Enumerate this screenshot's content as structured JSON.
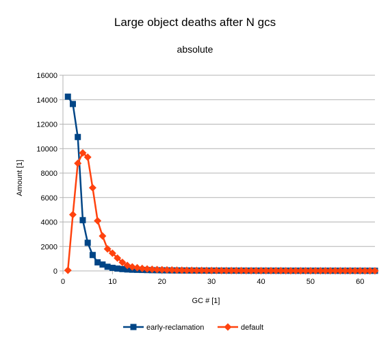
{
  "chart_data": {
    "type": "line",
    "title": "Large object deaths after N gcs",
    "subtitle": "absolute",
    "xlabel": "GC # [1]",
    "ylabel": "Amount [1]",
    "xlim": [
      0,
      63
    ],
    "ylim": [
      0,
      16000
    ],
    "x_ticks": [
      "0",
      "10",
      "20",
      "30",
      "40",
      "50",
      "60"
    ],
    "y_ticks": [
      "0",
      "2000",
      "4000",
      "6000",
      "8000",
      "10000",
      "12000",
      "14000",
      "16000"
    ],
    "grid": "horizontal",
    "legend": "bottom",
    "x": [
      1,
      2,
      3,
      4,
      5,
      6,
      7,
      8,
      9,
      10,
      11,
      12,
      13,
      14,
      15,
      16,
      17,
      18,
      19,
      20,
      21,
      22,
      23,
      24,
      25,
      26,
      27,
      28,
      29,
      30,
      31,
      32,
      33,
      34,
      35,
      36,
      37,
      38,
      39,
      40,
      41,
      42,
      43,
      44,
      45,
      46,
      47,
      48,
      49,
      50,
      51,
      52,
      53,
      54,
      55,
      56,
      57,
      58,
      59,
      60,
      61,
      62,
      63
    ],
    "series": [
      {
        "name": "early-reclamation",
        "color": "#004586",
        "marker": "square",
        "values": [
          14250,
          13650,
          10950,
          4150,
          2300,
          1300,
          700,
          520,
          340,
          250,
          190,
          150,
          120,
          100,
          90,
          80,
          70,
          60,
          55,
          50,
          45,
          40,
          38,
          35,
          33,
          30,
          28,
          26,
          25,
          24,
          23,
          22,
          21,
          20,
          20,
          19,
          18,
          18,
          17,
          17,
          16,
          16,
          15,
          15,
          15,
          14,
          14,
          14,
          13,
          13,
          13,
          12,
          12,
          12,
          12,
          11,
          11,
          11,
          11,
          10,
          10,
          10,
          10
        ]
      },
      {
        "name": "default",
        "color": "#ff420e",
        "marker": "diamond",
        "values": [
          50,
          4600,
          8800,
          9650,
          9300,
          6800,
          4100,
          2850,
          1800,
          1450,
          1050,
          700,
          450,
          330,
          260,
          200,
          160,
          130,
          110,
          95,
          85,
          75,
          65,
          58,
          52,
          48,
          44,
          40,
          37,
          35,
          33,
          31,
          29,
          27,
          26,
          25,
          24,
          23,
          22,
          21,
          20,
          19,
          18,
          18,
          17,
          16,
          16,
          15,
          15,
          14,
          14,
          13,
          13,
          13,
          12,
          12,
          12,
          11,
          11,
          11,
          10,
          10,
          10
        ]
      }
    ]
  }
}
